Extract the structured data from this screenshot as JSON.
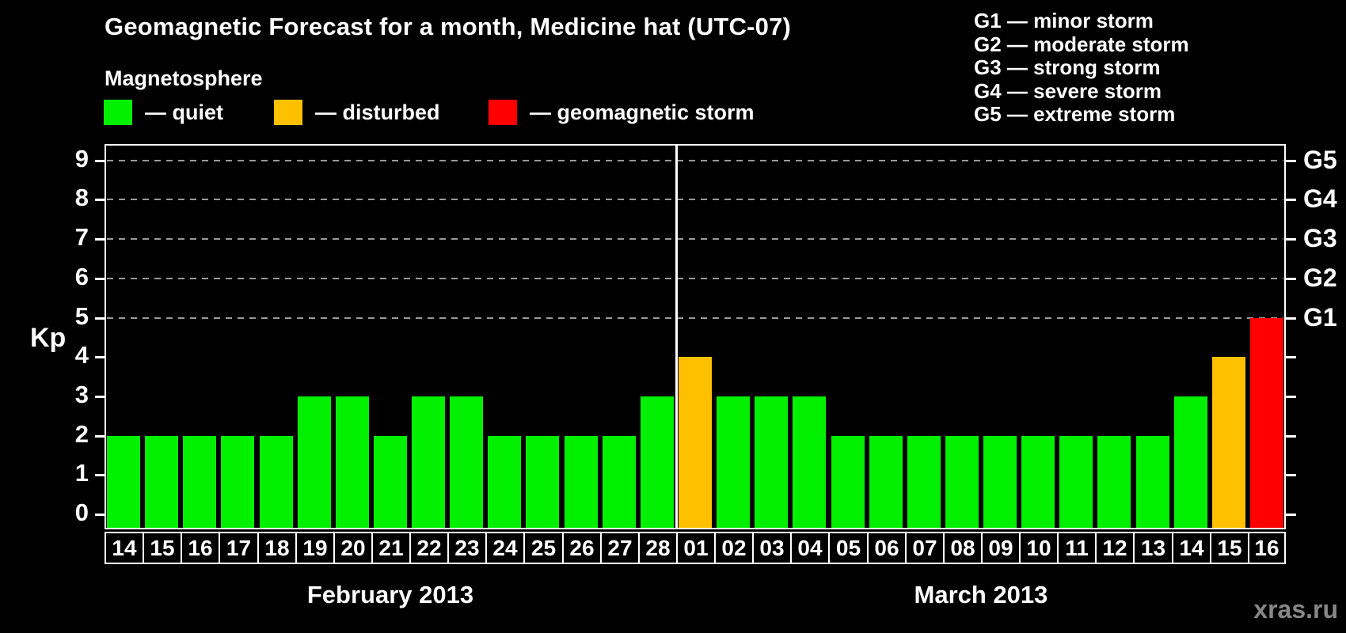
{
  "page": {
    "background": "#000000",
    "watermark": "xras.ru"
  },
  "header": {
    "title": "Geomagnetic Forecast for a month, Medicine hat (UTC-07)",
    "subtitle": "Magnetosphere"
  },
  "legend": {
    "items": [
      {
        "id": "quiet",
        "label": "— quiet",
        "color": "#00f000",
        "offset_x": 0
      },
      {
        "id": "disturbed",
        "label": "— disturbed",
        "color": "#ffc000",
        "offset_x": 215
      },
      {
        "id": "storm",
        "label": "— geomagnetic storm",
        "color": "#ff0000",
        "offset_x": 486
      }
    ]
  },
  "storm_scale_legend": {
    "items": [
      "G1 — minor storm",
      "G2 — moderate storm",
      "G3 — strong storm",
      "G4 — severe storm",
      "G5 — extreme storm"
    ]
  },
  "chart_data": {
    "type": "bar",
    "title": "Geomagnetic Forecast for a month, Medicine hat (UTC-07)",
    "xlabel": "",
    "ylabel": "Kp",
    "ylim": [
      0,
      9
    ],
    "yticks": [
      0,
      1,
      2,
      3,
      4,
      5,
      6,
      7,
      8,
      9
    ],
    "gridlines_at_kp": [
      5,
      6,
      7,
      8,
      9
    ],
    "grid": "dashed-horizontal",
    "legend_position": "top-left",
    "right_axis": [
      {
        "kp": 5,
        "label": "G1"
      },
      {
        "kp": 6,
        "label": "G2"
      },
      {
        "kp": 7,
        "label": "G3"
      },
      {
        "kp": 8,
        "label": "G4"
      },
      {
        "kp": 9,
        "label": "G5"
      }
    ],
    "level_colors": {
      "quiet": "#00f000",
      "disturbed": "#ffc000",
      "storm": "#ff0000"
    },
    "groups": [
      {
        "label": "February 2013",
        "bars": [
          {
            "day": "14",
            "kp": 2,
            "level": "quiet"
          },
          {
            "day": "15",
            "kp": 2,
            "level": "quiet"
          },
          {
            "day": "16",
            "kp": 2,
            "level": "quiet"
          },
          {
            "day": "17",
            "kp": 2,
            "level": "quiet"
          },
          {
            "day": "18",
            "kp": 2,
            "level": "quiet"
          },
          {
            "day": "19",
            "kp": 3,
            "level": "quiet"
          },
          {
            "day": "20",
            "kp": 3,
            "level": "quiet"
          },
          {
            "day": "21",
            "kp": 2,
            "level": "quiet"
          },
          {
            "day": "22",
            "kp": 3,
            "level": "quiet"
          },
          {
            "day": "23",
            "kp": 3,
            "level": "quiet"
          },
          {
            "day": "24",
            "kp": 2,
            "level": "quiet"
          },
          {
            "day": "25",
            "kp": 2,
            "level": "quiet"
          },
          {
            "day": "26",
            "kp": 2,
            "level": "quiet"
          },
          {
            "day": "27",
            "kp": 2,
            "level": "quiet"
          },
          {
            "day": "28",
            "kp": 3,
            "level": "quiet"
          }
        ]
      },
      {
        "label": "March 2013",
        "bars": [
          {
            "day": "01",
            "kp": 4,
            "level": "disturbed"
          },
          {
            "day": "02",
            "kp": 3,
            "level": "quiet"
          },
          {
            "day": "03",
            "kp": 3,
            "level": "quiet"
          },
          {
            "day": "04",
            "kp": 3,
            "level": "quiet"
          },
          {
            "day": "05",
            "kp": 2,
            "level": "quiet"
          },
          {
            "day": "06",
            "kp": 2,
            "level": "quiet"
          },
          {
            "day": "07",
            "kp": 2,
            "level": "quiet"
          },
          {
            "day": "08",
            "kp": 2,
            "level": "quiet"
          },
          {
            "day": "09",
            "kp": 2,
            "level": "quiet"
          },
          {
            "day": "10",
            "kp": 2,
            "level": "quiet"
          },
          {
            "day": "11",
            "kp": 2,
            "level": "quiet"
          },
          {
            "day": "12",
            "kp": 2,
            "level": "quiet"
          },
          {
            "day": "13",
            "kp": 2,
            "level": "quiet"
          },
          {
            "day": "14",
            "kp": 3,
            "level": "quiet"
          },
          {
            "day": "15",
            "kp": 4,
            "level": "disturbed"
          },
          {
            "day": "16",
            "kp": 5,
            "level": "storm"
          }
        ]
      }
    ]
  }
}
